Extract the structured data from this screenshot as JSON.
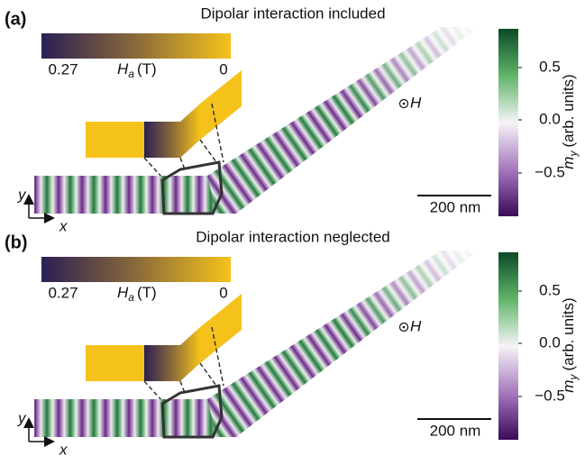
{
  "panels": [
    {
      "label": "(a)",
      "title": "Dipolar interaction included",
      "field_bar": {
        "min_label": "0.27",
        "symbol": "H",
        "subscript": "a",
        "unit": "(T)",
        "max_label": "0"
      },
      "colorbar": {
        "ticks": [
          "0.5",
          "0.0",
          "−0.5"
        ],
        "symbol": "m",
        "subscript": "y",
        "unit": "(arb. units)"
      },
      "field_symbol": "H",
      "scale_bar": "200 nm",
      "axes": {
        "y": "y",
        "x": "x"
      }
    },
    {
      "label": "(b)",
      "title": "Dipolar interaction neglected",
      "field_bar": {
        "min_label": "0.27",
        "symbol": "H",
        "subscript": "a",
        "unit": "(T)",
        "max_label": "0"
      },
      "colorbar": {
        "ticks": [
          "0.5",
          "0.0",
          "−0.5"
        ],
        "symbol": "m",
        "subscript": "y",
        "unit": "(arb. units)"
      },
      "field_symbol": "H",
      "scale_bar": "200 nm",
      "axes": {
        "y": "y",
        "x": "x"
      }
    }
  ]
}
